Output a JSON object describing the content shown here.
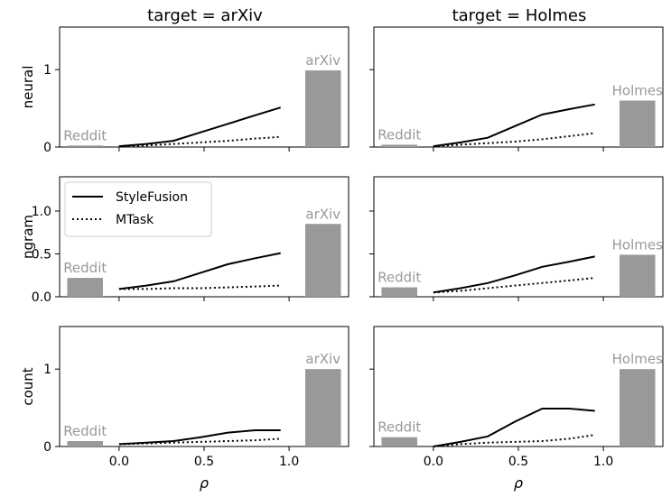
{
  "columns": [
    {
      "title": "target = arXiv",
      "target_label": "arXiv"
    },
    {
      "title": "target = Holmes",
      "target_label": "Holmes"
    }
  ],
  "source_label": "Reddit",
  "x_axis": {
    "label": "ρ",
    "ticks": [
      0.0,
      0.5,
      1.0
    ],
    "tick_labels": [
      "0.0",
      "0.5",
      "1.0"
    ],
    "range": [
      -0.35,
      1.35
    ]
  },
  "legend": {
    "placement": "top-left of ngram / arXiv panel",
    "entries": [
      {
        "label": "StyleFusion",
        "style": "solid"
      },
      {
        "label": "MTask",
        "style": "dotted"
      }
    ]
  },
  "colors": {
    "bar": "#999999",
    "bar_label": "#999999",
    "line": "#000000"
  },
  "chart_data": [
    {
      "type": "line",
      "row": "neural",
      "column": "arXiv",
      "ylabel": "neural",
      "ylim": [
        0,
        1.55
      ],
      "yticks": [
        0,
        1
      ],
      "ytick_labels": [
        "0",
        "1"
      ],
      "bars": [
        {
          "label": "Reddit",
          "x": -0.2,
          "value": 0.02
        },
        {
          "label": "arXiv",
          "x": 1.2,
          "value": 0.99
        }
      ],
      "series": [
        {
          "name": "StyleFusion",
          "x": [
            0,
            0.16,
            0.32,
            0.48,
            0.64,
            0.8,
            0.95
          ],
          "values": [
            0.01,
            0.04,
            0.08,
            0.19,
            0.3,
            0.41,
            0.51
          ]
        },
        {
          "name": "MTask",
          "x": [
            0,
            0.16,
            0.32,
            0.48,
            0.64,
            0.8,
            0.95
          ],
          "values": [
            0.01,
            0.02,
            0.04,
            0.06,
            0.08,
            0.11,
            0.13
          ]
        }
      ]
    },
    {
      "type": "line",
      "row": "neural",
      "column": "Holmes",
      "ylabel": "",
      "ylim": [
        0,
        1.55
      ],
      "yticks": [
        0,
        1
      ],
      "ytick_labels": [
        "",
        ""
      ],
      "bars": [
        {
          "label": "Reddit",
          "x": -0.2,
          "value": 0.03
        },
        {
          "label": "Holmes",
          "x": 1.2,
          "value": 0.6
        }
      ],
      "series": [
        {
          "name": "StyleFusion",
          "x": [
            0,
            0.16,
            0.32,
            0.48,
            0.64,
            0.8,
            0.95
          ],
          "values": [
            0.01,
            0.06,
            0.12,
            0.27,
            0.42,
            0.49,
            0.55
          ]
        },
        {
          "name": "MTask",
          "x": [
            0,
            0.16,
            0.32,
            0.48,
            0.64,
            0.8,
            0.95
          ],
          "values": [
            0.01,
            0.03,
            0.05,
            0.07,
            0.1,
            0.14,
            0.18
          ]
        }
      ]
    },
    {
      "type": "line",
      "row": "ngram",
      "column": "arXiv",
      "ylabel": "ngram",
      "ylim": [
        0,
        1.4
      ],
      "yticks": [
        0,
        0.5,
        1.0
      ],
      "ytick_labels": [
        "0.0",
        "0.5",
        "1.0"
      ],
      "bars": [
        {
          "label": "Reddit",
          "x": -0.2,
          "value": 0.22
        },
        {
          "label": "arXiv",
          "x": 1.2,
          "value": 0.85
        }
      ],
      "series": [
        {
          "name": "StyleFusion",
          "x": [
            0,
            0.16,
            0.32,
            0.48,
            0.64,
            0.8,
            0.95
          ],
          "values": [
            0.09,
            0.13,
            0.18,
            0.28,
            0.38,
            0.45,
            0.51
          ]
        },
        {
          "name": "MTask",
          "x": [
            0,
            0.16,
            0.32,
            0.48,
            0.64,
            0.8,
            0.95
          ],
          "values": [
            0.09,
            0.09,
            0.1,
            0.1,
            0.11,
            0.12,
            0.13
          ]
        }
      ]
    },
    {
      "type": "line",
      "row": "ngram",
      "column": "Holmes",
      "ylabel": "",
      "ylim": [
        0,
        1.4
      ],
      "yticks": [
        0,
        0.5,
        1.0
      ],
      "ytick_labels": [
        "",
        "",
        ""
      ],
      "bars": [
        {
          "label": "Reddit",
          "x": -0.2,
          "value": 0.11
        },
        {
          "label": "Holmes",
          "x": 1.2,
          "value": 0.49
        }
      ],
      "series": [
        {
          "name": "StyleFusion",
          "x": [
            0,
            0.16,
            0.32,
            0.48,
            0.64,
            0.8,
            0.95
          ],
          "values": [
            0.05,
            0.1,
            0.16,
            0.25,
            0.35,
            0.41,
            0.47
          ]
        },
        {
          "name": "MTask",
          "x": [
            0,
            0.16,
            0.32,
            0.48,
            0.64,
            0.8,
            0.95
          ],
          "values": [
            0.05,
            0.07,
            0.1,
            0.13,
            0.16,
            0.19,
            0.22
          ]
        }
      ]
    },
    {
      "type": "line",
      "row": "count",
      "column": "arXiv",
      "ylabel": "count",
      "ylim": [
        0,
        1.55
      ],
      "yticks": [
        0,
        1
      ],
      "ytick_labels": [
        "0",
        "1"
      ],
      "bars": [
        {
          "label": "Reddit",
          "x": -0.2,
          "value": 0.07
        },
        {
          "label": "arXiv",
          "x": 1.2,
          "value": 1.0
        }
      ],
      "series": [
        {
          "name": "StyleFusion",
          "x": [
            0,
            0.16,
            0.32,
            0.48,
            0.64,
            0.8,
            0.95
          ],
          "values": [
            0.03,
            0.05,
            0.07,
            0.12,
            0.18,
            0.21,
            0.21
          ]
        },
        {
          "name": "MTask",
          "x": [
            0,
            0.16,
            0.32,
            0.48,
            0.64,
            0.8,
            0.95
          ],
          "values": [
            0.03,
            0.04,
            0.05,
            0.06,
            0.07,
            0.08,
            0.1
          ]
        }
      ]
    },
    {
      "type": "line",
      "row": "count",
      "column": "Holmes",
      "ylabel": "",
      "ylim": [
        0,
        1.55
      ],
      "yticks": [
        0,
        1
      ],
      "ytick_labels": [
        "",
        ""
      ],
      "bars": [
        {
          "label": "Reddit",
          "x": -0.2,
          "value": 0.12
        },
        {
          "label": "Holmes",
          "x": 1.2,
          "value": 1.0
        }
      ],
      "series": [
        {
          "name": "StyleFusion",
          "x": [
            0,
            0.16,
            0.32,
            0.48,
            0.64,
            0.8,
            0.95
          ],
          "values": [
            0.0,
            0.06,
            0.13,
            0.32,
            0.49,
            0.49,
            0.46
          ]
        },
        {
          "name": "MTask",
          "x": [
            0,
            0.16,
            0.32,
            0.48,
            0.64,
            0.8,
            0.95
          ],
          "values": [
            0.0,
            0.03,
            0.05,
            0.06,
            0.07,
            0.1,
            0.15
          ]
        }
      ]
    }
  ]
}
